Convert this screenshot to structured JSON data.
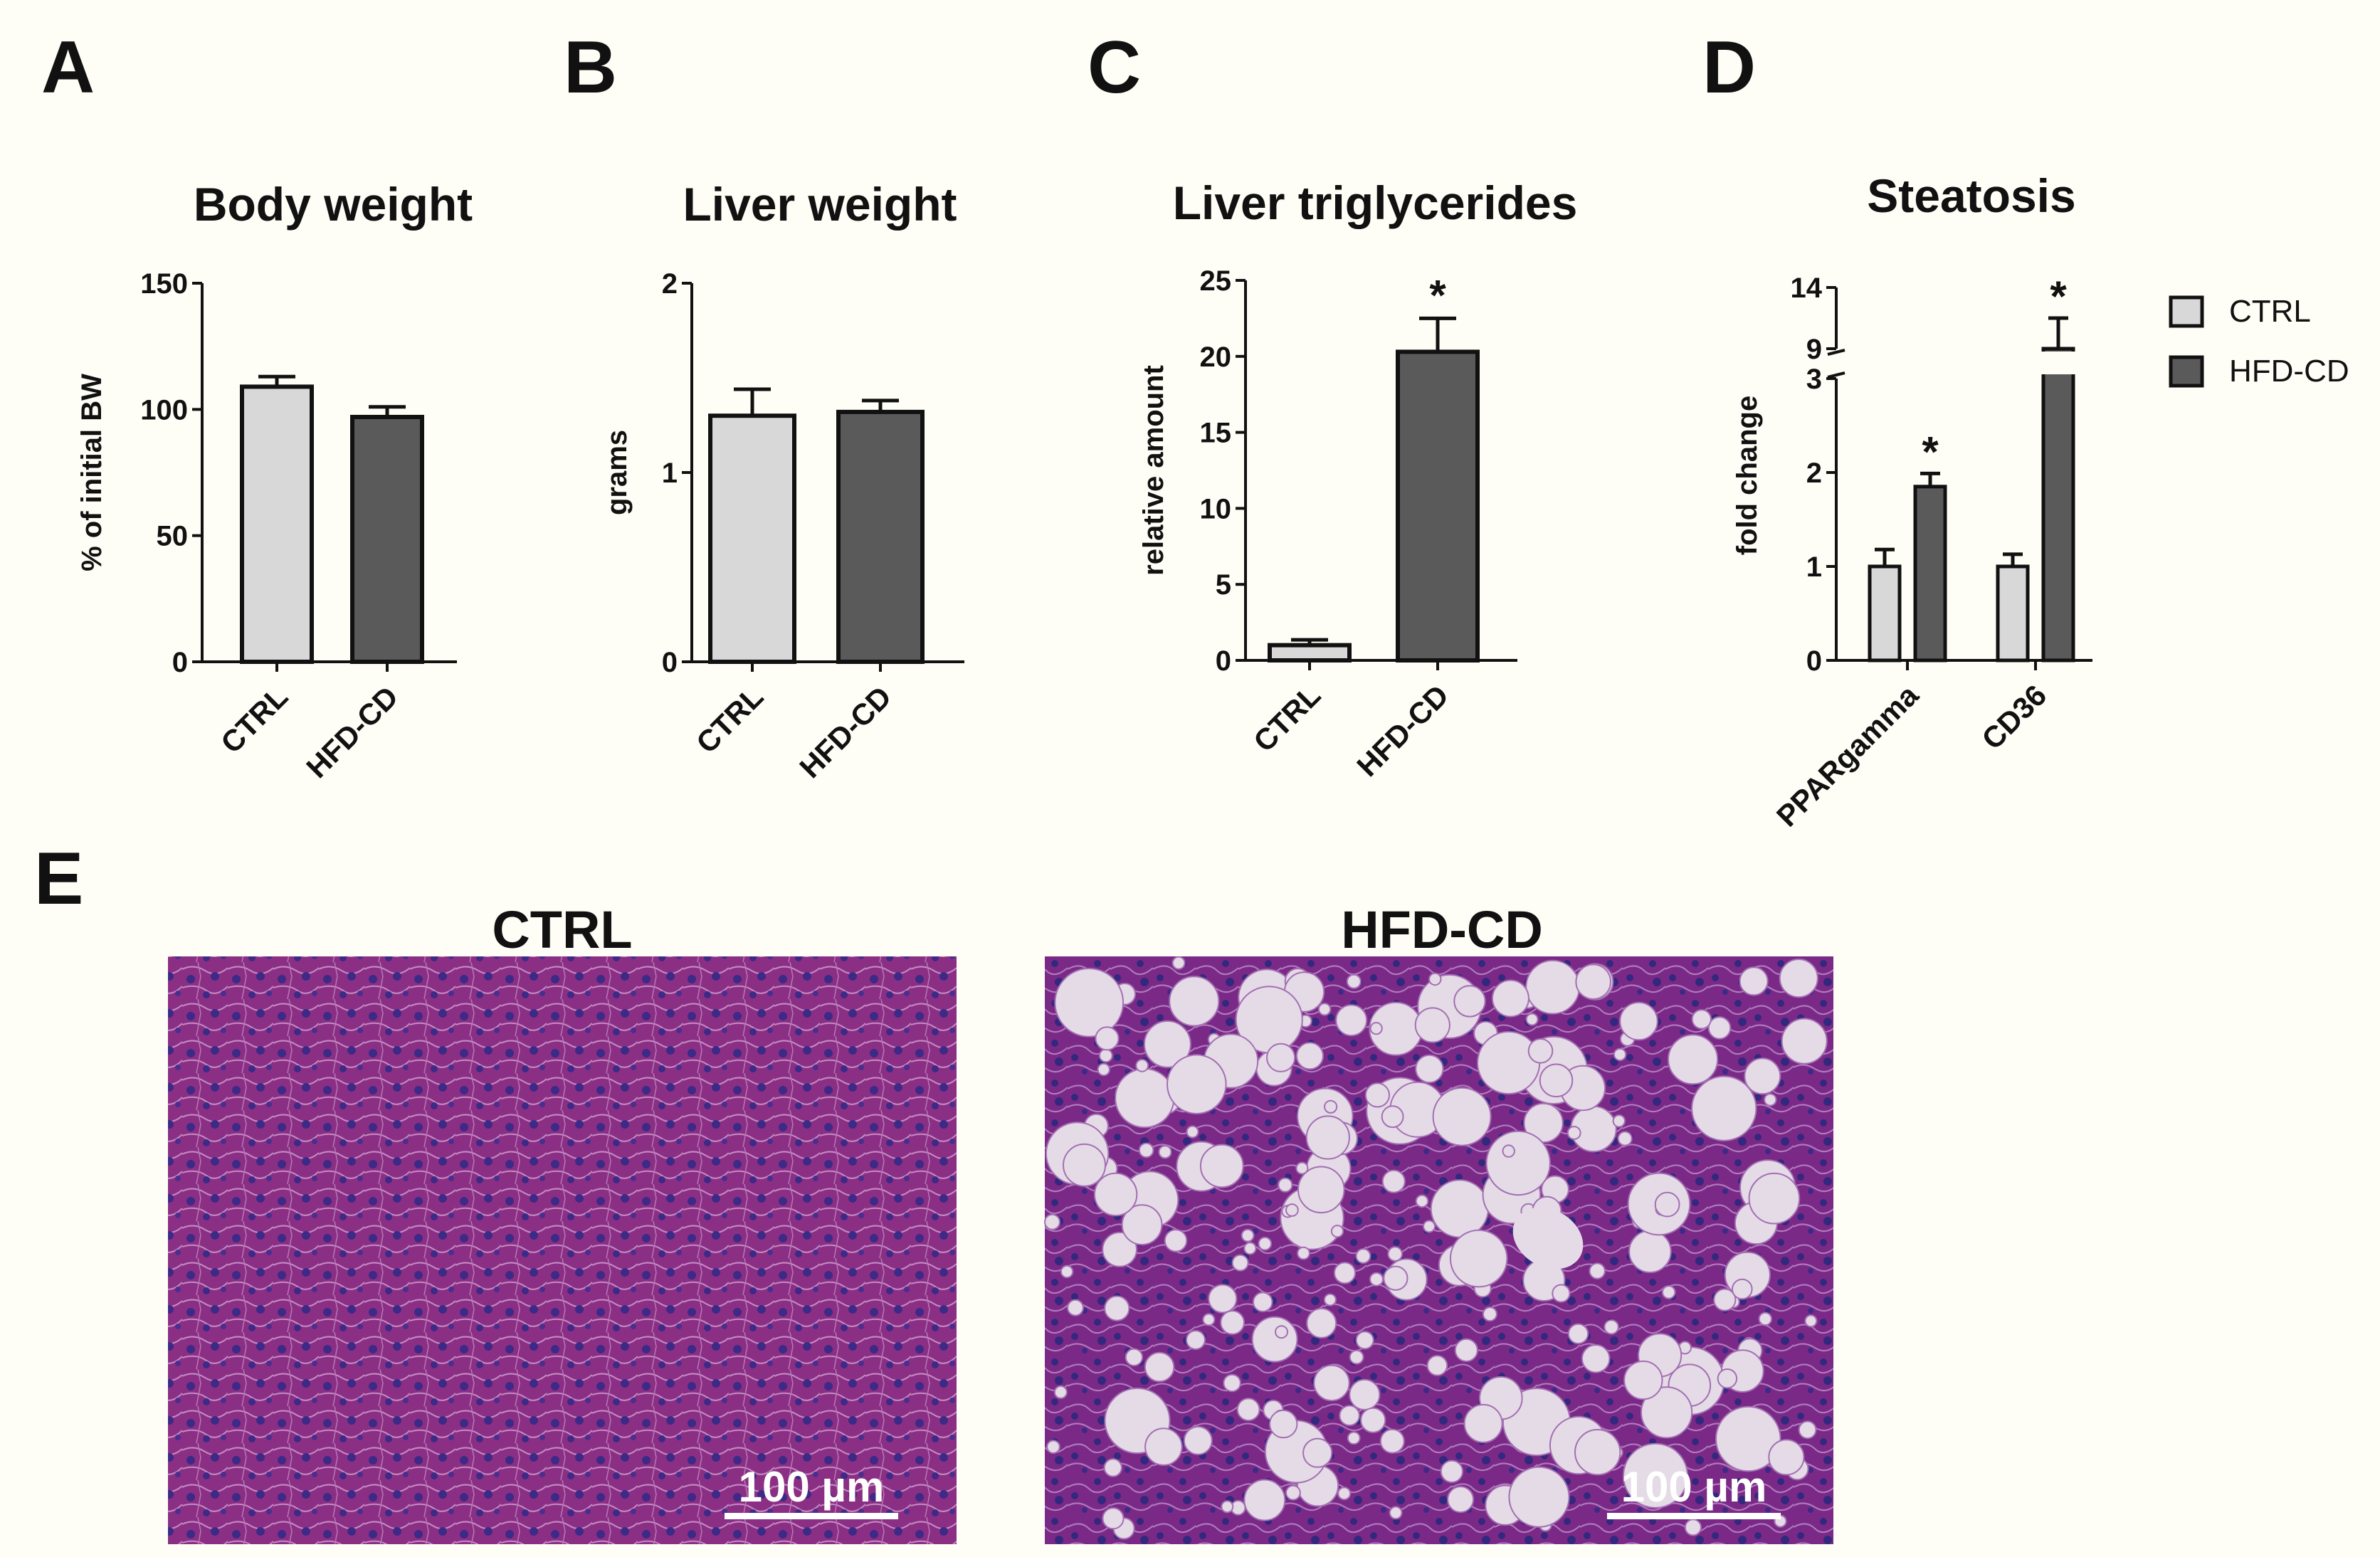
{
  "panel_letters": [
    "A",
    "B",
    "C",
    "D",
    "E"
  ],
  "colors": {
    "ctrl": "#d8d8d8",
    "hfd": "#5a5a5a",
    "stroke": "#111111",
    "background": "#fefef6",
    "he_ctrl": "#8b2f84",
    "he_hfd": "#7a2a86",
    "vacuole": "#e4dbe6"
  },
  "chart_data": [
    {
      "type": "bar",
      "title": "Body weight",
      "ylabel": "% of initial BW",
      "ylim": [
        0,
        150
      ],
      "yticks": [
        "0",
        "50",
        "100",
        "150"
      ],
      "categories": [
        "CTRL",
        "HFD-CD"
      ],
      "values": [
        109,
        97
      ],
      "errors": [
        4,
        4
      ],
      "significance": [
        "",
        ""
      ]
    },
    {
      "type": "bar",
      "title": "Liver weight",
      "ylabel": "grams",
      "ylim": [
        0,
        2
      ],
      "yticks": [
        "0",
        "1",
        "2"
      ],
      "categories": [
        "CTRL",
        "HFD-CD"
      ],
      "values": [
        1.3,
        1.32
      ],
      "errors": [
        0.14,
        0.06
      ],
      "significance": [
        "",
        ""
      ]
    },
    {
      "type": "bar",
      "title": "Liver triglycerides",
      "ylabel": "relative amount",
      "ylim": [
        0,
        25
      ],
      "yticks": [
        "0",
        "5",
        "10",
        "15",
        "20",
        "25"
      ],
      "categories": [
        "CTRL",
        "HFD-CD"
      ],
      "values": [
        1.0,
        20.3
      ],
      "errors": [
        0.35,
        2.2
      ],
      "significance": [
        "",
        "*"
      ]
    },
    {
      "type": "bar",
      "title": "Steatosis",
      "ylabel": "fold change",
      "ylim": [
        0,
        14
      ],
      "axis_break": [
        3,
        9
      ],
      "yticks": [
        "0",
        "1",
        "2",
        "3",
        "9",
        "14"
      ],
      "categories": [
        "PPARgamma",
        "CD36"
      ],
      "series": [
        {
          "name": "CTRL",
          "values": [
            1.0,
            1.0
          ],
          "errors": [
            0.18,
            0.13
          ],
          "significance": [
            "",
            ""
          ]
        },
        {
          "name": "HFD-CD",
          "values": [
            1.85,
            9.0
          ],
          "errors": [
            0.14,
            2.5
          ],
          "significance": [
            "*",
            "*"
          ]
        }
      ],
      "legend": "right"
    }
  ],
  "micrographs": [
    {
      "title": "CTRL",
      "scale_bar": "100 µm"
    },
    {
      "title": "HFD-CD",
      "scale_bar": "100 µm"
    }
  ]
}
